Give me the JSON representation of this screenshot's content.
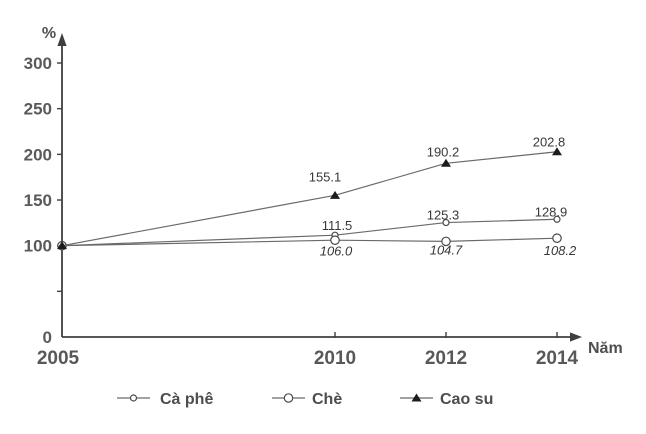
{
  "chart_data": {
    "type": "line",
    "title": "",
    "y_axis": {
      "unit": "%",
      "range": [
        0,
        330
      ],
      "ticks": [
        {
          "v": 0,
          "label": "0"
        },
        {
          "v": 50,
          "label": ""
        },
        {
          "v": 100,
          "label": "100"
        },
        {
          "v": 150,
          "label": "150"
        },
        {
          "v": 200,
          "label": "200"
        },
        {
          "v": 250,
          "label": "250"
        },
        {
          "v": 300,
          "label": "300"
        }
      ]
    },
    "x_axis": {
      "label": "Năm",
      "ticks": [
        {
          "v": 2005,
          "label": "2005"
        },
        {
          "v": 2010,
          "label": "2010"
        },
        {
          "v": 2012,
          "label": "2012"
        },
        {
          "v": 2014,
          "label": "2014"
        }
      ]
    },
    "series": [
      {
        "name": "Cà phê",
        "marker": "small-open-circle",
        "label_style": "normal",
        "x": [
          2005,
          2010,
          2012,
          2014
        ],
        "values": [
          100,
          111.5,
          125.3,
          128.9
        ],
        "point_labels": [
          "",
          "111.5",
          "125.3",
          "128.9"
        ]
      },
      {
        "name": "Chè",
        "marker": "open-circle",
        "label_style": "italic",
        "x": [
          2005,
          2010,
          2012,
          2014
        ],
        "values": [
          100,
          106.0,
          104.7,
          108.2
        ],
        "point_labels": [
          "",
          "106.0",
          "104.7",
          "108.2"
        ]
      },
      {
        "name": "Cao su",
        "marker": "filled-triangle",
        "label_style": "normal",
        "x": [
          2005,
          2010,
          2012,
          2014
        ],
        "values": [
          100,
          155.1,
          190.2,
          202.8
        ],
        "point_labels": [
          "",
          "155.1",
          "190.2",
          "202.8"
        ]
      }
    ],
    "legend": {
      "position": "bottom",
      "items": [
        "Cà phê",
        "Chè",
        "Cao su"
      ]
    }
  },
  "colors": {
    "background": "#ffffff",
    "axis": "#3f3f3f",
    "line": "#6a6a6a",
    "marker_stroke": "#4a4a4a",
    "marker_fill": "#ffffff",
    "triangle_fill": "#1c1c1c",
    "text": "#4f4f4f"
  }
}
